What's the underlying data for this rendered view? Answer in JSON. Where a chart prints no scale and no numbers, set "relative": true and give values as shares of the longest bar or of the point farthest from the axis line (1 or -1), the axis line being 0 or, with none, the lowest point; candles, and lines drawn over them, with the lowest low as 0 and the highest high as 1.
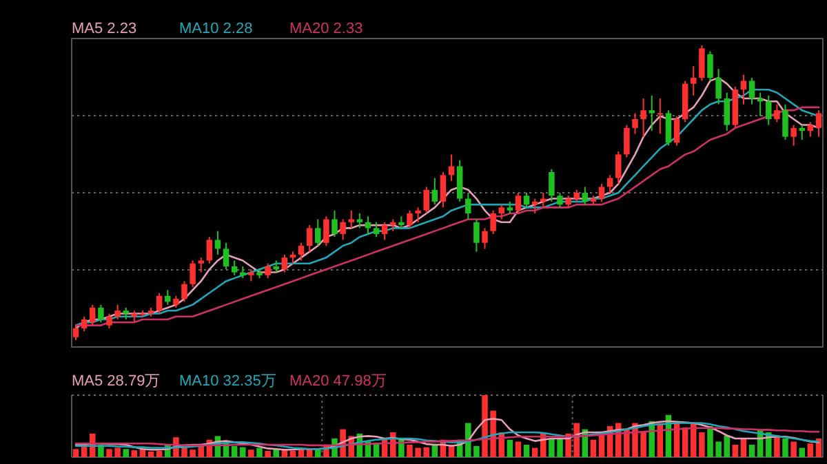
{
  "chart_data": [
    {
      "type": "candlestick",
      "relative": true,
      "grid": true,
      "legend": "top left",
      "categories": [
        null,
        null,
        null,
        null,
        null,
        null,
        null,
        null,
        null,
        null,
        null,
        null,
        null,
        null,
        null,
        null,
        null,
        null,
        null,
        null,
        null,
        null,
        null,
        null,
        null,
        null,
        null,
        null,
        null,
        null,
        null,
        null,
        null,
        null,
        null,
        null,
        null,
        null,
        null,
        null,
        null,
        null,
        null,
        null,
        null,
        null,
        null,
        null,
        null,
        null,
        null,
        null,
        null,
        null,
        null,
        null,
        null,
        null,
        null,
        null,
        null,
        null,
        null,
        null,
        null,
        null,
        null,
        null,
        null,
        null,
        null,
        null,
        null,
        null,
        null,
        null,
        null,
        null,
        null,
        null,
        null,
        null,
        null,
        null,
        null,
        null,
        null,
        null,
        null,
        null
      ],
      "ohlc": [
        [
          0.01,
          0.05,
          0.0,
          0.04
        ],
        [
          0.04,
          0.08,
          0.03,
          0.07
        ],
        [
          0.06,
          0.12,
          0.05,
          0.11
        ],
        [
          0.11,
          0.12,
          0.06,
          0.07
        ],
        [
          0.05,
          0.09,
          0.04,
          0.08
        ],
        [
          0.08,
          0.12,
          0.07,
          0.1
        ],
        [
          0.1,
          0.11,
          0.07,
          0.09
        ],
        [
          0.08,
          0.1,
          0.06,
          0.09
        ],
        [
          0.09,
          0.1,
          0.08,
          0.09
        ],
        [
          0.09,
          0.11,
          0.08,
          0.1
        ],
        [
          0.1,
          0.16,
          0.09,
          0.15
        ],
        [
          0.15,
          0.17,
          0.12,
          0.13
        ],
        [
          0.12,
          0.15,
          0.11,
          0.14
        ],
        [
          0.14,
          0.2,
          0.13,
          0.19
        ],
        [
          0.19,
          0.27,
          0.18,
          0.26
        ],
        [
          0.26,
          0.28,
          0.23,
          0.27
        ],
        [
          0.27,
          0.35,
          0.26,
          0.34
        ],
        [
          0.34,
          0.37,
          0.29,
          0.31
        ],
        [
          0.31,
          0.33,
          0.24,
          0.25
        ],
        [
          0.25,
          0.27,
          0.22,
          0.23
        ],
        [
          0.23,
          0.25,
          0.21,
          0.22
        ],
        [
          0.22,
          0.24,
          0.2,
          0.23
        ],
        [
          0.23,
          0.24,
          0.21,
          0.22
        ],
        [
          0.22,
          0.26,
          0.21,
          0.25
        ],
        [
          0.25,
          0.27,
          0.23,
          0.24
        ],
        [
          0.24,
          0.29,
          0.23,
          0.28
        ],
        [
          0.28,
          0.3,
          0.26,
          0.29
        ],
        [
          0.29,
          0.33,
          0.27,
          0.32
        ],
        [
          0.32,
          0.39,
          0.3,
          0.38
        ],
        [
          0.38,
          0.41,
          0.32,
          0.33
        ],
        [
          0.33,
          0.42,
          0.32,
          0.41
        ],
        [
          0.41,
          0.44,
          0.35,
          0.36
        ],
        [
          0.36,
          0.41,
          0.34,
          0.4
        ],
        [
          0.4,
          0.44,
          0.38,
          0.41
        ],
        [
          0.41,
          0.43,
          0.38,
          0.4
        ],
        [
          0.4,
          0.42,
          0.36,
          0.38
        ],
        [
          0.38,
          0.4,
          0.35,
          0.36
        ],
        [
          0.36,
          0.4,
          0.34,
          0.39
        ],
        [
          0.39,
          0.41,
          0.37,
          0.4
        ],
        [
          0.4,
          0.42,
          0.38,
          0.39
        ],
        [
          0.39,
          0.44,
          0.38,
          0.43
        ],
        [
          0.43,
          0.45,
          0.4,
          0.44
        ],
        [
          0.44,
          0.52,
          0.43,
          0.51
        ],
        [
          0.51,
          0.55,
          0.46,
          0.47
        ],
        [
          0.47,
          0.57,
          0.45,
          0.56
        ],
        [
          0.56,
          0.63,
          0.54,
          0.59
        ],
        [
          0.59,
          0.61,
          0.47,
          0.48
        ],
        [
          0.48,
          0.5,
          0.41,
          0.43
        ],
        [
          0.4,
          0.41,
          0.3,
          0.33
        ],
        [
          0.33,
          0.38,
          0.31,
          0.37
        ],
        [
          0.37,
          0.44,
          0.36,
          0.43
        ],
        [
          0.43,
          0.46,
          0.41,
          0.45
        ],
        [
          0.45,
          0.47,
          0.43,
          0.44
        ],
        [
          0.44,
          0.5,
          0.43,
          0.49
        ],
        [
          0.49,
          0.5,
          0.45,
          0.46
        ],
        [
          0.46,
          0.48,
          0.43,
          0.47
        ],
        [
          0.47,
          0.5,
          0.45,
          0.48
        ],
        [
          0.57,
          0.58,
          0.47,
          0.49
        ],
        [
          0.49,
          0.5,
          0.45,
          0.46
        ],
        [
          0.46,
          0.49,
          0.45,
          0.48
        ],
        [
          0.48,
          0.51,
          0.47,
          0.5
        ],
        [
          0.5,
          0.52,
          0.46,
          0.47
        ],
        [
          0.47,
          0.49,
          0.46,
          0.48
        ],
        [
          0.48,
          0.53,
          0.47,
          0.52
        ],
        [
          0.52,
          0.56,
          0.5,
          0.55
        ],
        [
          0.55,
          0.64,
          0.53,
          0.63
        ],
        [
          0.63,
          0.73,
          0.62,
          0.72
        ],
        [
          0.72,
          0.77,
          0.7,
          0.75
        ],
        [
          0.75,
          0.82,
          0.69,
          0.78
        ],
        [
          0.78,
          0.83,
          0.71,
          0.77
        ],
        [
          0.77,
          0.82,
          0.7,
          0.77
        ],
        [
          0.77,
          0.78,
          0.66,
          0.67
        ],
        [
          0.67,
          0.76,
          0.66,
          0.75
        ],
        [
          0.75,
          0.88,
          0.74,
          0.87
        ],
        [
          0.87,
          0.93,
          0.83,
          0.89
        ],
        [
          0.89,
          1.0,
          0.88,
          0.99
        ],
        [
          0.97,
          0.98,
          0.88,
          0.89
        ],
        [
          0.89,
          0.92,
          0.8,
          0.82
        ],
        [
          0.82,
          0.84,
          0.71,
          0.73
        ],
        [
          0.73,
          0.86,
          0.72,
          0.85
        ],
        [
          0.85,
          0.9,
          0.8,
          0.88
        ],
        [
          0.88,
          0.89,
          0.8,
          0.82
        ],
        [
          0.82,
          0.84,
          0.76,
          0.81
        ],
        [
          0.81,
          0.83,
          0.73,
          0.75
        ],
        [
          0.75,
          0.8,
          0.74,
          0.78
        ],
        [
          0.78,
          0.8,
          0.68,
          0.69
        ],
        [
          0.69,
          0.73,
          0.66,
          0.72
        ],
        [
          0.72,
          0.73,
          0.68,
          0.71
        ],
        [
          0.71,
          0.74,
          0.69,
          0.73
        ],
        [
          0.72,
          0.78,
          0.69,
          0.77
        ]
      ],
      "colors": [
        "#ff3030",
        "#ff3030",
        "#ff3030",
        "#20c020",
        "#ff3030",
        "#ff3030",
        "#20c020",
        "#ff3030",
        "#ff3030",
        "#ff3030",
        "#ff3030",
        "#20c020",
        "#ff3030",
        "#ff3030",
        "#ff3030",
        "#ff3030",
        "#ff3030",
        "#20c020",
        "#20c020",
        "#20c020",
        "#20c020",
        "#ff3030",
        "#20c020",
        "#ff3030",
        "#20c020",
        "#ff3030",
        "#ff3030",
        "#ff3030",
        "#ff3030",
        "#20c020",
        "#ff3030",
        "#20c020",
        "#ff3030",
        "#ff3030",
        "#20c020",
        "#20c020",
        "#20c020",
        "#ff3030",
        "#ff3030",
        "#20c020",
        "#ff3030",
        "#ff3030",
        "#ff3030",
        "#20c020",
        "#ff3030",
        "#ff3030",
        "#20c020",
        "#20c020",
        "#20c020",
        "#ff3030",
        "#ff3030",
        "#ff3030",
        "#20c020",
        "#ff3030",
        "#20c020",
        "#ff3030",
        "#ff3030",
        "#20c020",
        "#20c020",
        "#ff3030",
        "#ff3030",
        "#20c020",
        "#ff3030",
        "#ff3030",
        "#ff3030",
        "#ff3030",
        "#ff3030",
        "#ff3030",
        "#ff3030",
        "#20c020",
        "#ff3030",
        "#20c020",
        "#ff3030",
        "#ff3030",
        "#ff3030",
        "#ff3030",
        "#20c020",
        "#20c020",
        "#20c020",
        "#ff3030",
        "#ff3030",
        "#20c020",
        "#20c020",
        "#20c020",
        "#ff3030",
        "#20c020",
        "#ff3030",
        "#20c020",
        "#ff3030",
        "#ff3030"
      ],
      "series": [
        {
          "type": "line",
          "name": "MA5 2.23",
          "color": "#e8a0b8",
          "values": [
            0.04,
            0.06,
            0.07,
            0.07,
            0.08,
            0.09,
            0.09,
            0.09,
            0.09,
            0.09,
            0.1,
            0.11,
            0.12,
            0.14,
            0.17,
            0.2,
            0.24,
            0.27,
            0.29,
            0.28,
            0.27,
            0.25,
            0.23,
            0.23,
            0.23,
            0.24,
            0.26,
            0.28,
            0.3,
            0.32,
            0.35,
            0.36,
            0.38,
            0.38,
            0.39,
            0.39,
            0.39,
            0.39,
            0.39,
            0.38,
            0.39,
            0.41,
            0.43,
            0.45,
            0.48,
            0.51,
            0.52,
            0.51,
            0.48,
            0.44,
            0.41,
            0.4,
            0.4,
            0.44,
            0.45,
            0.46,
            0.47,
            0.48,
            0.48,
            0.48,
            0.48,
            0.48,
            0.48,
            0.49,
            0.5,
            0.53,
            0.58,
            0.63,
            0.69,
            0.73,
            0.76,
            0.75,
            0.75,
            0.77,
            0.79,
            0.83,
            0.88,
            0.89,
            0.87,
            0.84,
            0.82,
            0.82,
            0.82,
            0.81,
            0.81,
            0.77,
            0.75,
            0.73,
            0.73,
            0.72
          ]
        },
        {
          "type": "line",
          "name": "MA10 2.28",
          "color": "#20a8b8",
          "values": [
            0.05,
            0.06,
            0.06,
            0.07,
            0.07,
            0.08,
            0.08,
            0.08,
            0.08,
            0.09,
            0.09,
            0.1,
            0.1,
            0.11,
            0.12,
            0.14,
            0.16,
            0.18,
            0.2,
            0.21,
            0.22,
            0.23,
            0.24,
            0.25,
            0.26,
            0.26,
            0.26,
            0.26,
            0.26,
            0.27,
            0.28,
            0.3,
            0.32,
            0.33,
            0.35,
            0.36,
            0.37,
            0.37,
            0.38,
            0.38,
            0.38,
            0.39,
            0.4,
            0.41,
            0.42,
            0.44,
            0.45,
            0.46,
            0.46,
            0.46,
            0.46,
            0.46,
            0.46,
            0.46,
            0.45,
            0.45,
            0.45,
            0.46,
            0.47,
            0.47,
            0.47,
            0.47,
            0.48,
            0.48,
            0.49,
            0.5,
            0.53,
            0.56,
            0.59,
            0.62,
            0.65,
            0.67,
            0.69,
            0.72,
            0.75,
            0.78,
            0.8,
            0.81,
            0.81,
            0.82,
            0.83,
            0.85,
            0.85,
            0.85,
            0.84,
            0.82,
            0.8,
            0.78,
            0.77,
            0.76
          ]
        },
        {
          "type": "line",
          "name": "MA20 2.33",
          "color": "#d03068",
          "values": [
            0.05,
            0.05,
            0.05,
            0.05,
            0.06,
            0.06,
            0.06,
            0.06,
            0.07,
            0.07,
            0.07,
            0.07,
            0.08,
            0.08,
            0.08,
            0.09,
            0.1,
            0.11,
            0.12,
            0.13,
            0.14,
            0.15,
            0.16,
            0.17,
            0.18,
            0.19,
            0.2,
            0.21,
            0.22,
            0.23,
            0.24,
            0.25,
            0.26,
            0.27,
            0.28,
            0.29,
            0.3,
            0.31,
            0.32,
            0.33,
            0.34,
            0.35,
            0.36,
            0.37,
            0.38,
            0.39,
            0.4,
            0.41,
            0.41,
            0.41,
            0.42,
            0.42,
            0.43,
            0.43,
            0.44,
            0.44,
            0.45,
            0.45,
            0.45,
            0.45,
            0.46,
            0.46,
            0.46,
            0.46,
            0.47,
            0.48,
            0.5,
            0.52,
            0.54,
            0.56,
            0.58,
            0.59,
            0.61,
            0.63,
            0.64,
            0.66,
            0.68,
            0.69,
            0.7,
            0.72,
            0.73,
            0.74,
            0.75,
            0.76,
            0.77,
            0.78,
            0.78,
            0.79,
            0.79,
            0.79
          ]
        }
      ]
    },
    {
      "type": "bar",
      "relative": true,
      "grid": "x",
      "legend": "top left",
      "categories": [
        null,
        null,
        null,
        null,
        null,
        null,
        null,
        null,
        null,
        null,
        null,
        null,
        null,
        null,
        null,
        null,
        null,
        null,
        null,
        null,
        null,
        null,
        null,
        null,
        null,
        null,
        null,
        null,
        null,
        null,
        null,
        null,
        null,
        null,
        null,
        null,
        null,
        null,
        null,
        null,
        null,
        null,
        null,
        null,
        null,
        null,
        null,
        null,
        null,
        null,
        null,
        null,
        null,
        null,
        null,
        null,
        null,
        null,
        null,
        null,
        null,
        null,
        null,
        null,
        null,
        null,
        null,
        null,
        null,
        null,
        null,
        null,
        null,
        null,
        null,
        null,
        null,
        null,
        null,
        null,
        null,
        null,
        null,
        null,
        null,
        null,
        null,
        null,
        null,
        null
      ],
      "values": [
        0.13,
        0.2,
        0.38,
        0.2,
        0.13,
        0.15,
        0.13,
        0.11,
        0.13,
        0.09,
        0.1,
        0.2,
        0.32,
        0.2,
        0.12,
        0.18,
        0.28,
        0.34,
        0.22,
        0.18,
        0.16,
        0.12,
        0.15,
        0.1,
        0.13,
        0.12,
        0.1,
        0.12,
        0.14,
        0.12,
        0.18,
        0.3,
        0.45,
        0.34,
        0.38,
        0.25,
        0.22,
        0.3,
        0.4,
        0.28,
        0.2,
        0.15,
        0.16,
        0.2,
        0.28,
        0.2,
        0.28,
        0.55,
        0.18,
        1.0,
        0.75,
        0.4,
        0.28,
        0.25,
        0.2,
        0.15,
        0.4,
        0.3,
        0.3,
        0.38,
        0.55,
        0.45,
        0.28,
        0.35,
        0.5,
        0.55,
        0.45,
        0.55,
        0.4,
        0.58,
        0.55,
        0.68,
        0.55,
        0.48,
        0.55,
        0.4,
        0.5,
        0.25,
        0.35,
        0.2,
        0.3,
        0.2,
        0.45,
        0.4,
        0.35,
        0.3,
        0.25,
        0.15,
        0.22,
        0.3
      ],
      "colors": [
        "#ff3030",
        "#ff3030",
        "#ff3030",
        "#20c020",
        "#ff3030",
        "#ff3030",
        "#20c020",
        "#ff3030",
        "#ff3030",
        "#ff3030",
        "#ff3030",
        "#20c020",
        "#ff3030",
        "#ff3030",
        "#ff3030",
        "#ff3030",
        "#ff3030",
        "#20c020",
        "#20c020",
        "#20c020",
        "#20c020",
        "#ff3030",
        "#20c020",
        "#ff3030",
        "#20c020",
        "#ff3030",
        "#ff3030",
        "#ff3030",
        "#ff3030",
        "#20c020",
        "#ff3030",
        "#20c020",
        "#ff3030",
        "#ff3030",
        "#20c020",
        "#20c020",
        "#20c020",
        "#ff3030",
        "#ff3030",
        "#20c020",
        "#ff3030",
        "#ff3030",
        "#ff3030",
        "#20c020",
        "#ff3030",
        "#ff3030",
        "#20c020",
        "#20c020",
        "#20c020",
        "#ff3030",
        "#ff3030",
        "#ff3030",
        "#20c020",
        "#ff3030",
        "#20c020",
        "#ff3030",
        "#ff3030",
        "#20c020",
        "#20c020",
        "#ff3030",
        "#ff3030",
        "#20c020",
        "#ff3030",
        "#ff3030",
        "#ff3030",
        "#ff3030",
        "#ff3030",
        "#ff3030",
        "#ff3030",
        "#20c020",
        "#ff3030",
        "#20c020",
        "#ff3030",
        "#ff3030",
        "#ff3030",
        "#ff3030",
        "#20c020",
        "#20c020",
        "#20c020",
        "#ff3030",
        "#ff3030",
        "#20c020",
        "#20c020",
        "#20c020",
        "#ff3030",
        "#20c020",
        "#ff3030",
        "#20c020",
        "#ff3030",
        "#ff3030"
      ],
      "series": [
        {
          "type": "line",
          "name": "MA5 28.79万",
          "color": "#e8a0b8",
          "values": [
            0.2,
            0.2,
            0.22,
            0.22,
            0.21,
            0.21,
            0.2,
            0.16,
            0.13,
            0.12,
            0.12,
            0.13,
            0.17,
            0.19,
            0.2,
            0.2,
            0.22,
            0.25,
            0.26,
            0.24,
            0.22,
            0.2,
            0.17,
            0.14,
            0.13,
            0.12,
            0.12,
            0.13,
            0.13,
            0.13,
            0.14,
            0.18,
            0.24,
            0.3,
            0.33,
            0.34,
            0.33,
            0.3,
            0.31,
            0.29,
            0.28,
            0.25,
            0.21,
            0.2,
            0.2,
            0.18,
            0.2,
            0.26,
            0.45,
            0.6,
            0.62,
            0.6,
            0.45,
            0.35,
            0.3,
            0.26,
            0.28,
            0.3,
            0.3,
            0.3,
            0.36,
            0.4,
            0.4,
            0.4,
            0.42,
            0.44,
            0.45,
            0.5,
            0.52,
            0.55,
            0.57,
            0.58,
            0.57,
            0.56,
            0.55,
            0.52,
            0.48,
            0.42,
            0.35,
            0.3,
            0.3,
            0.3,
            0.3,
            0.32,
            0.33,
            0.33,
            0.31,
            0.28,
            0.25,
            0.24
          ]
        },
        {
          "type": "line",
          "name": "MA10 32.35万",
          "color": "#20a8b8",
          "values": [
            0.18,
            0.18,
            0.18,
            0.18,
            0.18,
            0.17,
            0.17,
            0.16,
            0.16,
            0.15,
            0.15,
            0.15,
            0.16,
            0.16,
            0.17,
            0.18,
            0.2,
            0.22,
            0.23,
            0.24,
            0.24,
            0.23,
            0.22,
            0.2,
            0.19,
            0.17,
            0.15,
            0.14,
            0.13,
            0.13,
            0.14,
            0.15,
            0.18,
            0.21,
            0.24,
            0.26,
            0.28,
            0.29,
            0.3,
            0.3,
            0.3,
            0.29,
            0.27,
            0.26,
            0.25,
            0.24,
            0.24,
            0.25,
            0.28,
            0.32,
            0.36,
            0.38,
            0.4,
            0.4,
            0.4,
            0.4,
            0.39,
            0.37,
            0.35,
            0.33,
            0.33,
            0.35,
            0.37,
            0.38,
            0.4,
            0.42,
            0.45,
            0.47,
            0.5,
            0.52,
            0.53,
            0.54,
            0.55,
            0.55,
            0.55,
            0.55,
            0.53,
            0.5,
            0.48,
            0.45,
            0.42,
            0.4,
            0.38,
            0.36,
            0.34,
            0.32,
            0.3,
            0.28,
            0.26,
            0.25
          ]
        },
        {
          "type": "line",
          "name": "MA20 47.98万",
          "color": "#d03068",
          "values": [
            0.22,
            0.22,
            0.22,
            0.22,
            0.22,
            0.22,
            0.22,
            0.22,
            0.22,
            0.22,
            0.21,
            0.2,
            0.2,
            0.19,
            0.19,
            0.19,
            0.19,
            0.19,
            0.19,
            0.2,
            0.2,
            0.2,
            0.2,
            0.2,
            0.2,
            0.2,
            0.2,
            0.2,
            0.19,
            0.19,
            0.19,
            0.19,
            0.2,
            0.2,
            0.21,
            0.21,
            0.22,
            0.22,
            0.23,
            0.23,
            0.24,
            0.24,
            0.25,
            0.25,
            0.26,
            0.26,
            0.27,
            0.27,
            0.28,
            0.29,
            0.3,
            0.31,
            0.32,
            0.33,
            0.33,
            0.33,
            0.33,
            0.33,
            0.33,
            0.33,
            0.34,
            0.34,
            0.35,
            0.36,
            0.37,
            0.38,
            0.39,
            0.4,
            0.41,
            0.42,
            0.43,
            0.44,
            0.45,
            0.46,
            0.47,
            0.47,
            0.47,
            0.47,
            0.46,
            0.46,
            0.45,
            0.45,
            0.44,
            0.44,
            0.43,
            0.43,
            0.42,
            0.42,
            0.41,
            0.41
          ]
        }
      ]
    }
  ]
}
